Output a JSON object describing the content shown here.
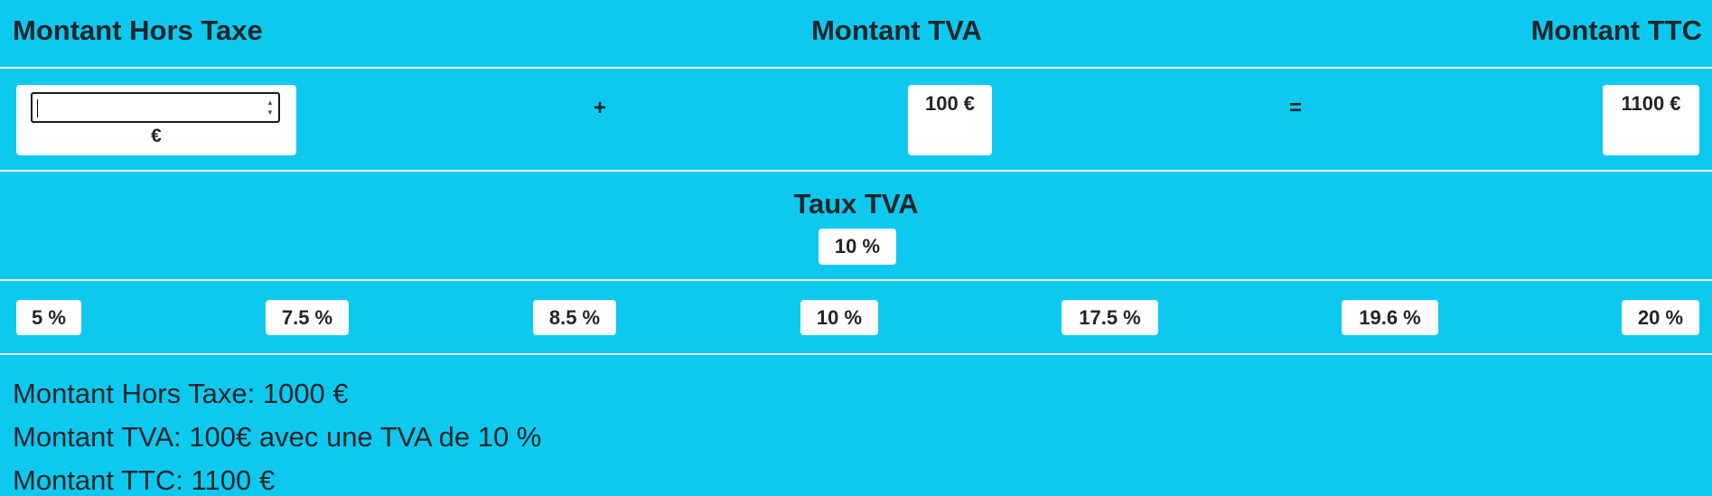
{
  "headers": {
    "hors_taxe": "Montant Hors Taxe",
    "tva": "Montant TVA",
    "ttc": "Montant TTC"
  },
  "amounts": {
    "ht_input_value": "",
    "currency_symbol": "€",
    "plus": "+",
    "equals": "=",
    "tva_value": "100 €",
    "ttc_value": "1100 €"
  },
  "rate": {
    "title": "Taux TVA",
    "selected": "10 %",
    "options": [
      "5 %",
      "7.5 %",
      "8.5 %",
      "10 %",
      "17.5 %",
      "19.6 %",
      "20 %"
    ]
  },
  "summary": {
    "ht_line": "Montant Hors Taxe: 1000 €",
    "tva_line": "Montant TVA: 100€ avec une TVA de 10 %",
    "ttc_line": "Montant TTC: 1100 €"
  },
  "colors": {
    "background": "#0dc9f0",
    "card": "#ffffff",
    "text": "#212529",
    "divider": "#e9f7fb"
  }
}
